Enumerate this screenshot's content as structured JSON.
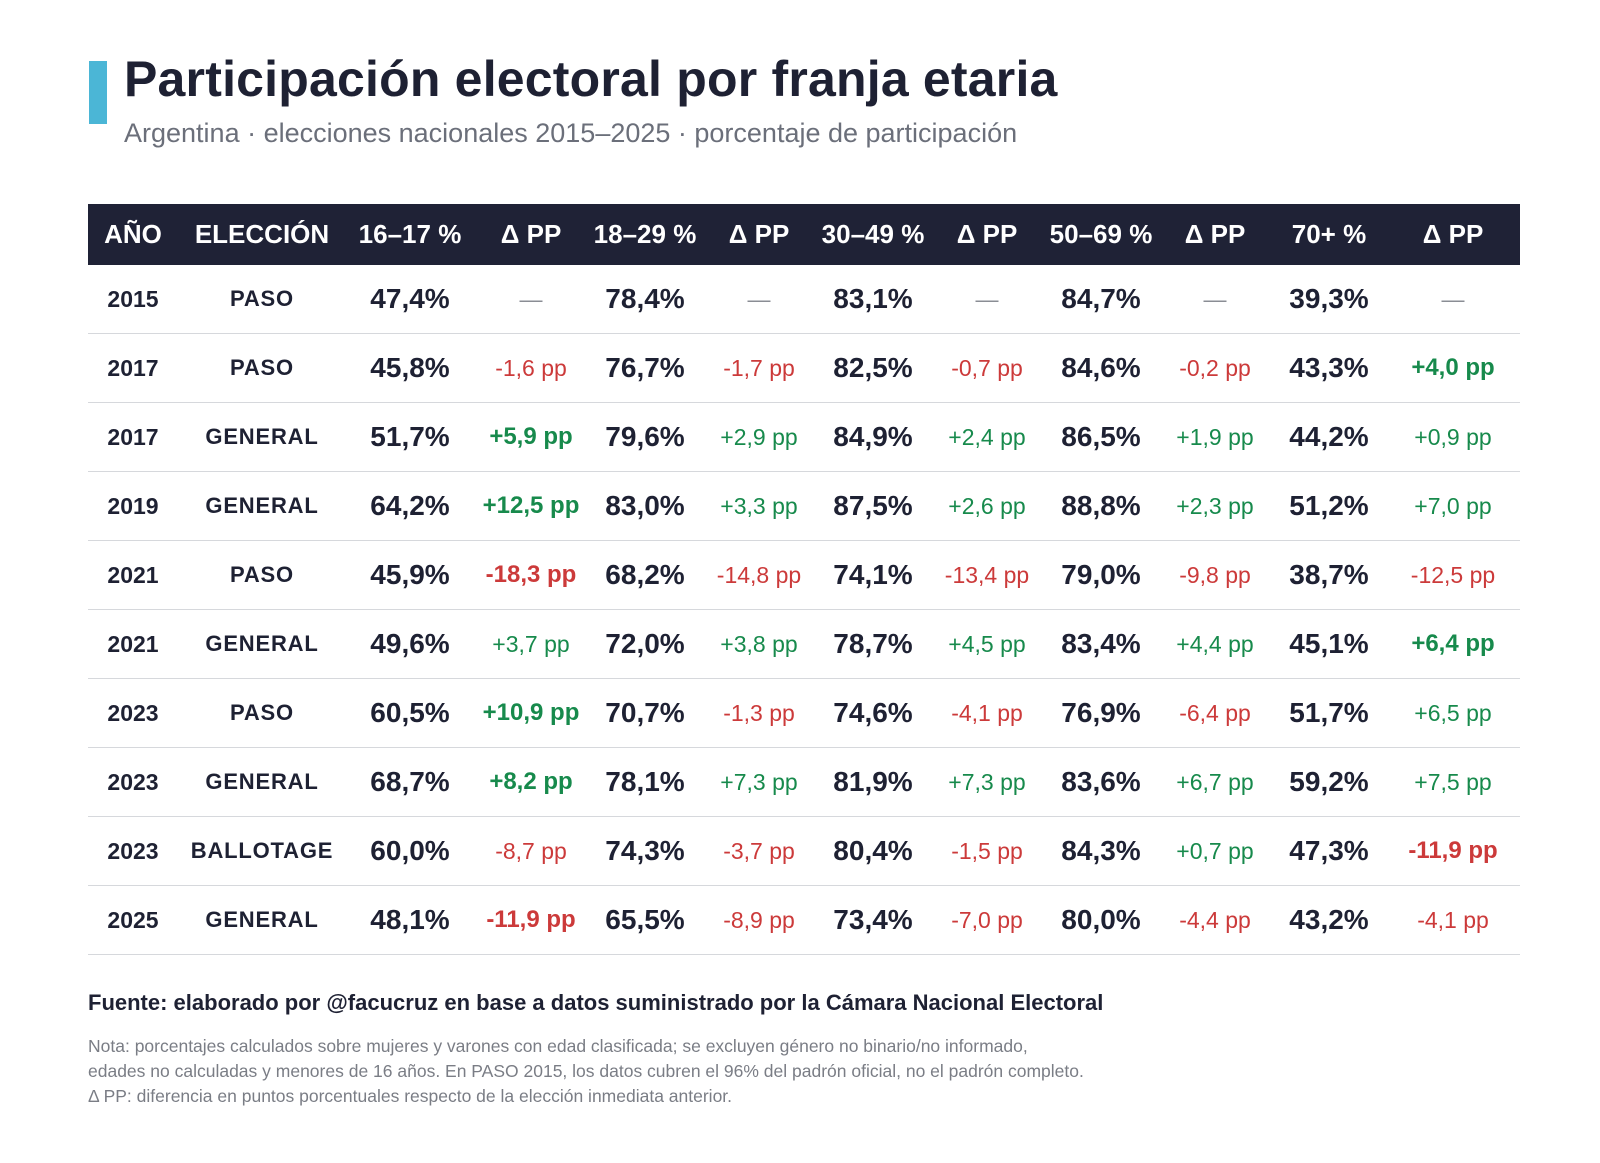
{
  "title": "Participación electoral por franja etaria",
  "subtitle": "Argentina · elecciones nacionales 2015–2025 · porcentaje de participación",
  "colors": {
    "accent": "#4bb6d6",
    "header_bg": "#1f2236",
    "positive": "#178a4c",
    "negative": "#cc3a3a"
  },
  "chart_data": {
    "type": "table",
    "columns": [
      "AÑO",
      "ELECCIÓN",
      "16–17 %",
      "Δ PP",
      "18–29 %",
      "Δ PP",
      "30–49 %",
      "Δ PP",
      "50–69 %",
      "Δ PP",
      "70+ %",
      "Δ PP"
    ],
    "rows": [
      {
        "year": "2015",
        "election": "PASO",
        "cells": [
          {
            "value": "47,4%",
            "delta": "—",
            "strong": false
          },
          {
            "value": "78,4%",
            "delta": "—",
            "strong": false
          },
          {
            "value": "83,1%",
            "delta": "—",
            "strong": false
          },
          {
            "value": "84,7%",
            "delta": "—",
            "strong": false
          },
          {
            "value": "39,3%",
            "delta": "—",
            "strong": false
          }
        ]
      },
      {
        "year": "2017",
        "election": "PASO",
        "cells": [
          {
            "value": "45,8%",
            "delta": "-1,6 pp",
            "strong": false
          },
          {
            "value": "76,7%",
            "delta": "-1,7 pp",
            "strong": false
          },
          {
            "value": "82,5%",
            "delta": "-0,7 pp",
            "strong": false
          },
          {
            "value": "84,6%",
            "delta": "-0,2 pp",
            "strong": false
          },
          {
            "value": "43,3%",
            "delta": "+4,0 pp",
            "strong": true
          }
        ]
      },
      {
        "year": "2017",
        "election": "GENERAL",
        "cells": [
          {
            "value": "51,7%",
            "delta": "+5,9 pp",
            "strong": true
          },
          {
            "value": "79,6%",
            "delta": "+2,9 pp",
            "strong": false
          },
          {
            "value": "84,9%",
            "delta": "+2,4 pp",
            "strong": false
          },
          {
            "value": "86,5%",
            "delta": "+1,9 pp",
            "strong": false
          },
          {
            "value": "44,2%",
            "delta": "+0,9 pp",
            "strong": false
          }
        ]
      },
      {
        "year": "2019",
        "election": "GENERAL",
        "cells": [
          {
            "value": "64,2%",
            "delta": "+12,5 pp",
            "strong": true
          },
          {
            "value": "83,0%",
            "delta": "+3,3 pp",
            "strong": false
          },
          {
            "value": "87,5%",
            "delta": "+2,6 pp",
            "strong": false
          },
          {
            "value": "88,8%",
            "delta": "+2,3 pp",
            "strong": false
          },
          {
            "value": "51,2%",
            "delta": "+7,0 pp",
            "strong": false
          }
        ]
      },
      {
        "year": "2021",
        "election": "PASO",
        "cells": [
          {
            "value": "45,9%",
            "delta": "-18,3 pp",
            "strong": true
          },
          {
            "value": "68,2%",
            "delta": "-14,8 pp",
            "strong": false
          },
          {
            "value": "74,1%",
            "delta": "-13,4 pp",
            "strong": false
          },
          {
            "value": "79,0%",
            "delta": "-9,8 pp",
            "strong": false
          },
          {
            "value": "38,7%",
            "delta": "-12,5 pp",
            "strong": false
          }
        ]
      },
      {
        "year": "2021",
        "election": "GENERAL",
        "cells": [
          {
            "value": "49,6%",
            "delta": "+3,7 pp",
            "strong": false
          },
          {
            "value": "72,0%",
            "delta": "+3,8 pp",
            "strong": false
          },
          {
            "value": "78,7%",
            "delta": "+4,5 pp",
            "strong": false
          },
          {
            "value": "83,4%",
            "delta": "+4,4 pp",
            "strong": false
          },
          {
            "value": "45,1%",
            "delta": "+6,4 pp",
            "strong": true
          }
        ]
      },
      {
        "year": "2023",
        "election": "PASO",
        "cells": [
          {
            "value": "60,5%",
            "delta": "+10,9 pp",
            "strong": true
          },
          {
            "value": "70,7%",
            "delta": "-1,3 pp",
            "strong": false
          },
          {
            "value": "74,6%",
            "delta": "-4,1 pp",
            "strong": false
          },
          {
            "value": "76,9%",
            "delta": "-6,4 pp",
            "strong": false
          },
          {
            "value": "51,7%",
            "delta": "+6,5 pp",
            "strong": false
          }
        ]
      },
      {
        "year": "2023",
        "election": "GENERAL",
        "cells": [
          {
            "value": "68,7%",
            "delta": "+8,2 pp",
            "strong": true
          },
          {
            "value": "78,1%",
            "delta": "+7,3 pp",
            "strong": false
          },
          {
            "value": "81,9%",
            "delta": "+7,3 pp",
            "strong": false
          },
          {
            "value": "83,6%",
            "delta": "+6,7 pp",
            "strong": false
          },
          {
            "value": "59,2%",
            "delta": "+7,5 pp",
            "strong": false
          }
        ]
      },
      {
        "year": "2023",
        "election": "BALLOTAGE",
        "cells": [
          {
            "value": "60,0%",
            "delta": "-8,7 pp",
            "strong": false
          },
          {
            "value": "74,3%",
            "delta": "-3,7 pp",
            "strong": false
          },
          {
            "value": "80,4%",
            "delta": "-1,5 pp",
            "strong": false
          },
          {
            "value": "84,3%",
            "delta": "+0,7 pp",
            "strong": false
          },
          {
            "value": "47,3%",
            "delta": "-11,9 pp",
            "strong": true
          }
        ]
      },
      {
        "year": "2025",
        "election": "GENERAL",
        "cells": [
          {
            "value": "48,1%",
            "delta": "-11,9 pp",
            "strong": true
          },
          {
            "value": "65,5%",
            "delta": "-8,9 pp",
            "strong": false
          },
          {
            "value": "73,4%",
            "delta": "-7,0 pp",
            "strong": false
          },
          {
            "value": "80,0%",
            "delta": "-4,4 pp",
            "strong": false
          },
          {
            "value": "43,2%",
            "delta": "-4,1 pp",
            "strong": false
          }
        ]
      }
    ]
  },
  "source": "Fuente: elaborado por @facucruz en base a datos suministrado por la Cámara Nacional Electoral",
  "note_lines": [
    "Nota: porcentajes calculados sobre mujeres y varones con edad clasificada; se excluyen género no binario/no informado,",
    "edades no calculadas y menores de 16 años. En PASO 2015, los datos cubren el 96% del padrón oficial, no el padrón completo.",
    "Δ PP: diferencia en puntos porcentuales respecto de la elección inmediata anterior."
  ]
}
